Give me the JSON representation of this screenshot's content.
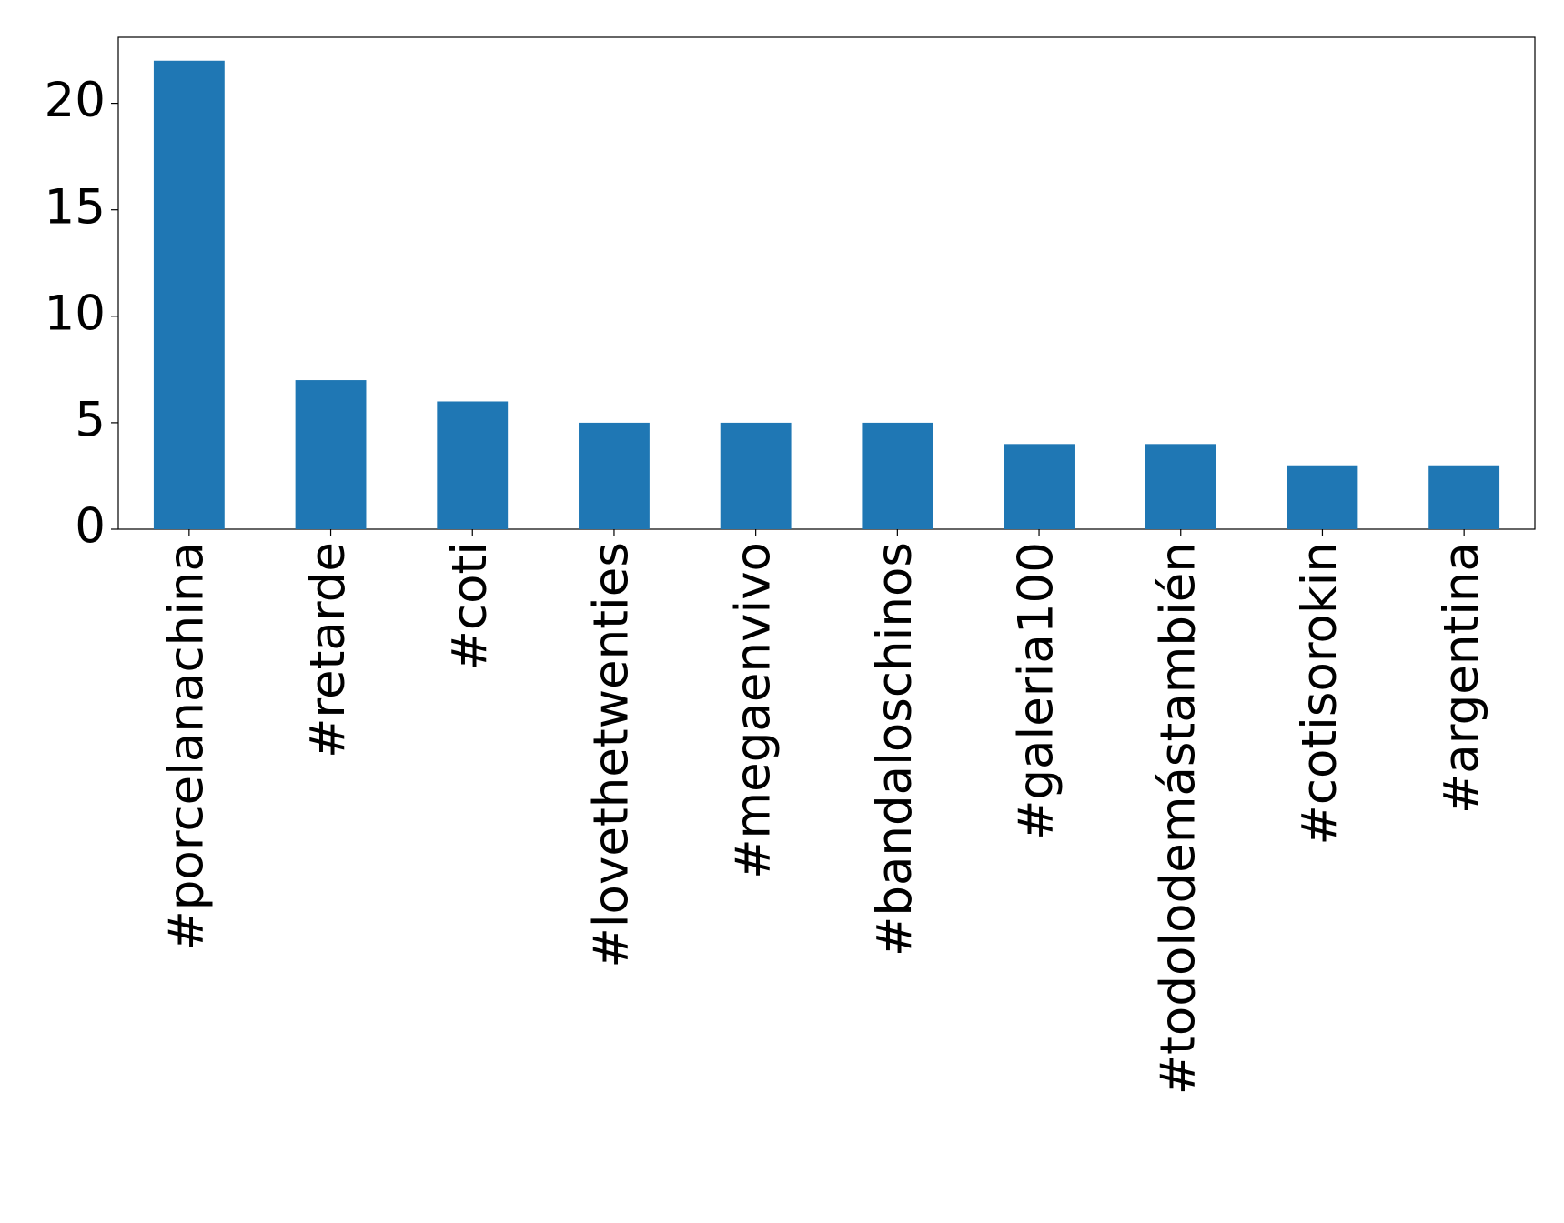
{
  "chart_data": {
    "type": "bar",
    "categories": [
      "#porcelanachina",
      "#retarde",
      "#coti",
      "#lovethetwenties",
      "#megaenvivo",
      "#bandaloschinos",
      "#galeria100",
      "#todolodemástambién",
      "#cotisorokin",
      "#argentina"
    ],
    "values": [
      22,
      7,
      6,
      5,
      5,
      5,
      4,
      4,
      3,
      3
    ],
    "color": "#1f77b4",
    "ylim": [
      0,
      23.1
    ],
    "yticks": [
      0,
      5,
      10,
      15,
      20
    ],
    "grid": false
  }
}
